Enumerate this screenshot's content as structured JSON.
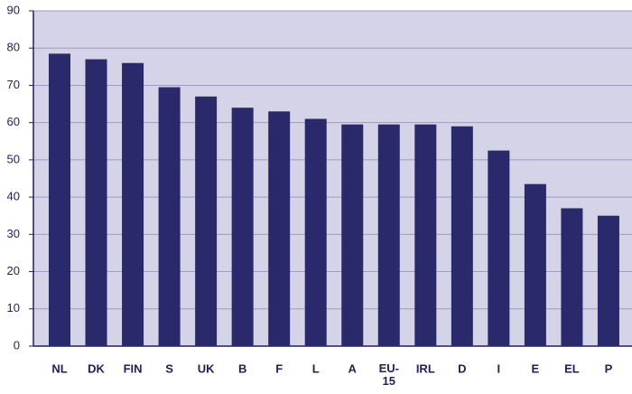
{
  "chart_data": {
    "type": "bar",
    "categories": [
      "NL",
      "DK",
      "FIN",
      "S",
      "UK",
      "B",
      "F",
      "L",
      "A",
      "EU-15",
      "IRL",
      "D",
      "I",
      "E",
      "EL",
      "P"
    ],
    "values": [
      78.5,
      77,
      76,
      69.5,
      67,
      64,
      63,
      61,
      59.5,
      59.5,
      59.5,
      59,
      52.5,
      43.5,
      37,
      35
    ],
    "color": "#29296b",
    "ylim": [
      0,
      90
    ],
    "yticks": [
      0,
      10,
      20,
      30,
      40,
      50,
      60,
      70,
      80,
      90
    ],
    "grid": true
  }
}
